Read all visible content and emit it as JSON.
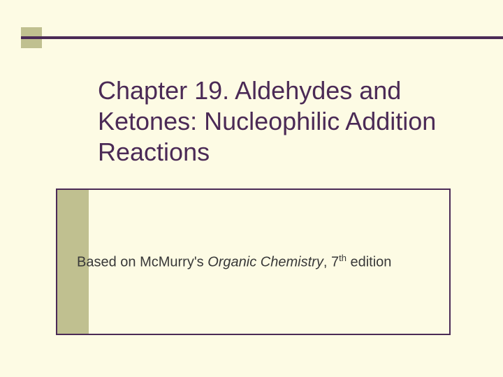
{
  "slide": {
    "background_color": "#fdfbe4",
    "accent_color": "#c0c090",
    "rule_color": "#4b2a56",
    "title_color": "#4b2a56",
    "box_border_color": "#4b2a56",
    "title": "Chapter 19. Aldehydes and Ketones: Nucleophilic Addition Reactions",
    "subtitle_prefix": "Based on McMurry's ",
    "subtitle_italic": "Organic Chemistry",
    "subtitle_suffix_before_sup": ", 7",
    "subtitle_sup": "th",
    "subtitle_suffix_after_sup": " edition",
    "title_fontsize": 36,
    "subtitle_fontsize": 20
  }
}
